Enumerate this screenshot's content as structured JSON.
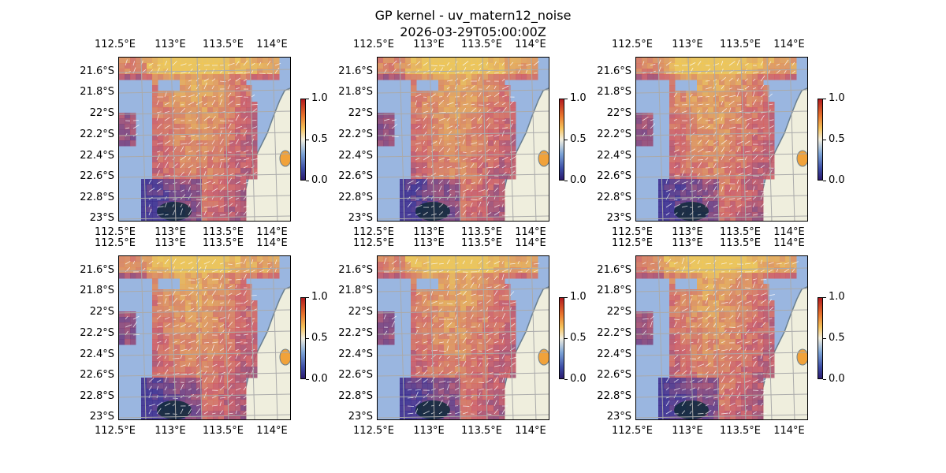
{
  "figure": {
    "title": "GP kernel - uv_matern12_noise",
    "timestamp": "2026-03-29T05:00:00Z"
  },
  "axes": {
    "lon_ticks": [
      "112.5°E",
      "113°E",
      "113.5°E",
      "114°E"
    ],
    "lat_ticks": [
      "21.6°S",
      "21.8°S",
      "22°S",
      "22.2°S",
      "22.4°S",
      "22.6°S",
      "22.8°S",
      "23°S"
    ]
  },
  "colorbar": {
    "ticks": [
      "0.0",
      "0.5",
      "1.0"
    ],
    "range": [
      0,
      1
    ]
  },
  "panels_count": 6,
  "colors": {
    "ocean": "#9ab6e0",
    "land": "#efeedd",
    "coast": "#6a7f8f",
    "grid": "#aaaaaa",
    "field_low": "#3b2a8c",
    "field_mid": "#d65a5e",
    "field_high": "#f7c84a"
  }
}
